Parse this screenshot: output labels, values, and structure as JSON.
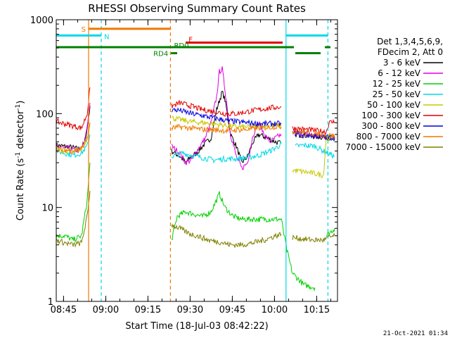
{
  "chart_data": {
    "type": "line",
    "title": "RHESSI Observing Summary Count Rates",
    "xlabel": "Start Time (18-Jul-03 08:42:22)",
    "ylabel_main": "Count Rate (s",
    "ylabel_sup1": "-1",
    "ylabel_mid": " detector",
    "ylabel_sup2": "-1",
    "ylabel_end": ")",
    "y_scale": "log",
    "xlim_minutes": [
      0,
      100
    ],
    "ylim": [
      1,
      1000
    ],
    "x_ticks": [
      {
        "t": 2.6,
        "label": "08:45"
      },
      {
        "t": 17.6,
        "label": "09:00"
      },
      {
        "t": 32.6,
        "label": "09:15"
      },
      {
        "t": 47.6,
        "label": "09:30"
      },
      {
        "t": 62.6,
        "label": "09:45"
      },
      {
        "t": 77.6,
        "label": "10:00"
      },
      {
        "t": 92.6,
        "label": "10:15"
      }
    ],
    "y_ticks": [
      {
        "v": 1,
        "label": "1"
      },
      {
        "v": 10,
        "label": "10"
      },
      {
        "v": 100,
        "label": "100"
      },
      {
        "v": 1000,
        "label": "1000"
      }
    ],
    "legend_header1": "Det 1,3,4,5,6,9,",
    "legend_header2": "FDecim 2, Att 0",
    "legend": [
      {
        "label": "3 - 6 keV",
        "color": "#000000"
      },
      {
        "label": "6 - 12 keV",
        "color": "#e000e0"
      },
      {
        "label": "12 - 25 keV",
        "color": "#00d000"
      },
      {
        "label": "25 - 50 keV",
        "color": "#00d8e8"
      },
      {
        "label": "50 - 100 keV",
        "color": "#c8c800"
      },
      {
        "label": "100 - 300 keV",
        "color": "#e00000"
      },
      {
        "label": "300 - 800 keV",
        "color": "#0000e0"
      },
      {
        "label": "800 - 7000 keV",
        "color": "#f07800"
      },
      {
        "label": "7000 - 15000 keV",
        "color": "#808000"
      }
    ],
    "series": [
      {
        "name": "3 - 6 keV",
        "color": "#000000",
        "segments": [
          [
            [
              0,
              46
            ],
            [
              5,
              44
            ],
            [
              8,
              42
            ],
            [
              10,
              48
            ],
            [
              11,
              70
            ],
            [
              12,
              120
            ]
          ],
          [
            [
              41,
              40
            ],
            [
              44,
              35
            ],
            [
              46,
              30
            ],
            [
              48,
              35
            ],
            [
              50,
              38
            ],
            [
              52,
              45
            ],
            [
              55,
              55
            ],
            [
              57,
              110
            ],
            [
              59,
              170
            ],
            [
              60,
              140
            ],
            [
              62,
              60
            ],
            [
              64,
              45
            ],
            [
              66,
              30
            ],
            [
              68,
              35
            ],
            [
              70,
              50
            ],
            [
              72,
              60
            ],
            [
              75,
              55
            ],
            [
              78,
              50
            ],
            [
              80,
              48
            ]
          ],
          [
            [
              85,
              60
            ],
            [
              90,
              58
            ],
            [
              95,
              56
            ],
            [
              99,
              55
            ]
          ]
        ]
      },
      {
        "name": "6 - 12 keV",
        "color": "#e000e0",
        "segments": [
          [
            [
              0,
              45
            ],
            [
              5,
              42
            ],
            [
              8,
              40
            ],
            [
              10,
              48
            ],
            [
              11,
              75
            ],
            [
              12,
              130
            ]
          ],
          [
            [
              41,
              45
            ],
            [
              44,
              38
            ],
            [
              46,
              30
            ],
            [
              48,
              32
            ],
            [
              50,
              40
            ],
            [
              53,
              55
            ],
            [
              55,
              80
            ],
            [
              57,
              150
            ],
            [
              58,
              280
            ],
            [
              59,
              300
            ],
            [
              60,
              180
            ],
            [
              62,
              60
            ],
            [
              64,
              35
            ],
            [
              66,
              26
            ],
            [
              68,
              30
            ],
            [
              70,
              60
            ],
            [
              72,
              80
            ],
            [
              74,
              60
            ],
            [
              76,
              50
            ],
            [
              78,
              55
            ],
            [
              80,
              60
            ]
          ],
          [
            [
              85,
              62
            ],
            [
              90,
              60
            ],
            [
              95,
              57
            ],
            [
              99,
              57
            ]
          ]
        ]
      },
      {
        "name": "12 - 25 keV",
        "color": "#00d000",
        "segments": [
          [
            [
              0,
              5
            ],
            [
              3,
              5
            ],
            [
              6,
              4.5
            ],
            [
              9,
              5
            ],
            [
              11,
              12
            ],
            [
              12,
              30
            ]
          ],
          [
            [
              41,
              4.5
            ],
            [
              43,
              8
            ],
            [
              46,
              9
            ],
            [
              49,
              8.5
            ],
            [
              52,
              8
            ],
            [
              55,
              9
            ],
            [
              57,
              12
            ],
            [
              58,
              14
            ],
            [
              60,
              10
            ],
            [
              63,
              8
            ],
            [
              66,
              7.5
            ],
            [
              70,
              7.5
            ],
            [
              74,
              7.5
            ],
            [
              78,
              7.5
            ],
            [
              80,
              7.5
            ],
            [
              82,
              3.5
            ],
            [
              84,
              2
            ],
            [
              88,
              1.5
            ],
            [
              92,
              1.4
            ]
          ],
          [
            [
              96,
              5
            ],
            [
              99,
              6
            ]
          ]
        ]
      },
      {
        "name": "25 - 50 keV",
        "color": "#00d8e8",
        "segments": [
          [
            [
              0,
              40
            ],
            [
              3,
              38
            ],
            [
              6,
              36
            ],
            [
              9,
              38
            ],
            [
              11,
              45
            ],
            [
              12,
              60
            ]
          ],
          [
            [
              41,
              35
            ],
            [
              45,
              38
            ],
            [
              48,
              36
            ],
            [
              52,
              34
            ],
            [
              56,
              32
            ],
            [
              60,
              33
            ],
            [
              64,
              33
            ],
            [
              68,
              34
            ],
            [
              72,
              36
            ],
            [
              76,
              40
            ],
            [
              79,
              45
            ],
            [
              80,
              48
            ]
          ],
          [
            [
              85,
              45
            ],
            [
              88,
              46
            ],
            [
              92,
              45
            ],
            [
              95,
              40
            ],
            [
              99,
              35
            ]
          ]
        ]
      },
      {
        "name": "50 - 100 keV",
        "color": "#c8c800",
        "segments": [
          [
            [
              0,
              42
            ],
            [
              3,
              40
            ],
            [
              6,
              39
            ],
            [
              9,
              42
            ],
            [
              11,
              55
            ],
            [
              12,
              80
            ]
          ],
          [
            [
              41,
              90
            ],
            [
              45,
              85
            ],
            [
              48,
              82
            ],
            [
              52,
              80
            ],
            [
              56,
              78
            ],
            [
              60,
              75
            ],
            [
              64,
              72
            ],
            [
              68,
              72
            ],
            [
              72,
              74
            ],
            [
              76,
              74
            ],
            [
              80,
              75
            ]
          ],
          [
            [
              84,
              25
            ],
            [
              88,
              24
            ],
            [
              92,
              23
            ],
            [
              95,
              22
            ],
            [
              96,
              55
            ],
            [
              99,
              55
            ]
          ]
        ]
      },
      {
        "name": "100 - 300 keV",
        "color": "#e00000",
        "segments": [
          [
            [
              0,
              82
            ],
            [
              3,
              78
            ],
            [
              6,
              74
            ],
            [
              9,
              70
            ],
            [
              11,
              100
            ],
            [
              12,
              190
            ]
          ],
          [
            [
              41,
              120
            ],
            [
              44,
              130
            ],
            [
              48,
              120
            ],
            [
              52,
              110
            ],
            [
              56,
              105
            ],
            [
              60,
              100
            ],
            [
              64,
              100
            ],
            [
              68,
              105
            ],
            [
              72,
              110
            ],
            [
              76,
              115
            ],
            [
              80,
              118
            ]
          ],
          [
            [
              84,
              70
            ],
            [
              88,
              68
            ],
            [
              92,
              66
            ],
            [
              96,
              64
            ],
            [
              97,
              80
            ],
            [
              99,
              82
            ]
          ]
        ]
      },
      {
        "name": "300 - 800 keV",
        "color": "#0000e0",
        "segments": [
          [
            [
              41,
              110
            ],
            [
              44,
              108
            ],
            [
              48,
              100
            ],
            [
              52,
              95
            ],
            [
              56,
              90
            ],
            [
              60,
              85
            ],
            [
              64,
              82
            ],
            [
              68,
              80
            ],
            [
              72,
              78
            ],
            [
              76,
              78
            ],
            [
              80,
              78
            ]
          ],
          [
            [
              84,
              62
            ],
            [
              88,
              60
            ],
            [
              92,
              58
            ],
            [
              96,
              56
            ],
            [
              99,
              55
            ]
          ]
        ]
      },
      {
        "name": "800 - 7000 keV",
        "color": "#f07800",
        "segments": [
          [
            [
              0,
              42
            ],
            [
              3,
              41
            ],
            [
              6,
              40
            ],
            [
              9,
              42
            ],
            [
              11,
              55
            ],
            [
              12,
              80
            ]
          ],
          [
            [
              41,
              70
            ],
            [
              44,
              72
            ],
            [
              48,
              70
            ],
            [
              52,
              68
            ],
            [
              56,
              67
            ],
            [
              60,
              66
            ],
            [
              64,
              67
            ],
            [
              68,
              68
            ],
            [
              72,
              70
            ],
            [
              76,
              72
            ],
            [
              80,
              73
            ]
          ],
          [
            [
              84,
              65
            ],
            [
              88,
              63
            ],
            [
              92,
              61
            ],
            [
              96,
              59
            ],
            [
              99,
              58
            ]
          ]
        ]
      },
      {
        "name": "7000 - 15000 keV",
        "color": "#808000",
        "segments": [
          [
            [
              0,
              4.5
            ],
            [
              3,
              4.2
            ],
            [
              6,
              4
            ],
            [
              9,
              4.2
            ],
            [
              11,
              8
            ],
            [
              12,
              15
            ]
          ],
          [
            [
              41,
              6.5
            ],
            [
              44,
              6
            ],
            [
              46,
              5.5
            ],
            [
              48,
              5.2
            ],
            [
              50,
              5
            ],
            [
              54,
              4.5
            ],
            [
              58,
              4.3
            ],
            [
              62,
              4
            ],
            [
              66,
              4
            ],
            [
              70,
              4.2
            ],
            [
              74,
              4.5
            ],
            [
              78,
              5
            ],
            [
              80,
              5.2
            ]
          ],
          [
            [
              84,
              4.8
            ],
            [
              88,
              4.6
            ],
            [
              92,
              4.5
            ],
            [
              95,
              4.5
            ],
            [
              97,
              4.8
            ],
            [
              99,
              5
            ]
          ]
        ]
      }
    ],
    "vlines": [
      {
        "t": 11.5,
        "color": "#f07800",
        "dash": false
      },
      {
        "t": 16,
        "color": "#00d8e8",
        "dash": true
      },
      {
        "t": 40.6,
        "color": "#f07800",
        "dash": true
      },
      {
        "t": 81.7,
        "color": "#00d8e8",
        "dash": false
      },
      {
        "t": 96.6,
        "color": "#00d8e8",
        "dash": true
      }
    ],
    "bars": [
      {
        "label": "S",
        "color": "#f07800",
        "y": 800,
        "t1": 11.5,
        "t2": 40.8,
        "label_pos": "left"
      },
      {
        "label": "N",
        "color": "#00d8e8",
        "y": 680,
        "t1": 0,
        "t2": 16,
        "label_pos": "right"
      },
      {
        "label": "",
        "color": "#00d8e8",
        "y": 680,
        "t1": 81.7,
        "t2": 96.6,
        "label_pos": "none"
      },
      {
        "label": "F",
        "color": "#e00000",
        "y": 570,
        "t1": 46,
        "t2": 80.5,
        "label_pos": "left-above"
      },
      {
        "label": "RD0",
        "color": "#008000",
        "y": 510,
        "t1": 0,
        "t2": 84.5,
        "label_pos": "mid"
      },
      {
        "label": "",
        "color": "#008000",
        "y": 510,
        "t1": 95.5,
        "t2": 97.5,
        "label_pos": "none"
      },
      {
        "label": "RD4",
        "color": "#008000",
        "y": 440,
        "t1": 40.8,
        "t2": 43,
        "label_pos": "left"
      },
      {
        "label": "",
        "color": "#008000",
        "y": 440,
        "t1": 85,
        "t2": 94,
        "label_pos": "none"
      }
    ],
    "timestamp": "21-Oct-2021 01:34"
  }
}
